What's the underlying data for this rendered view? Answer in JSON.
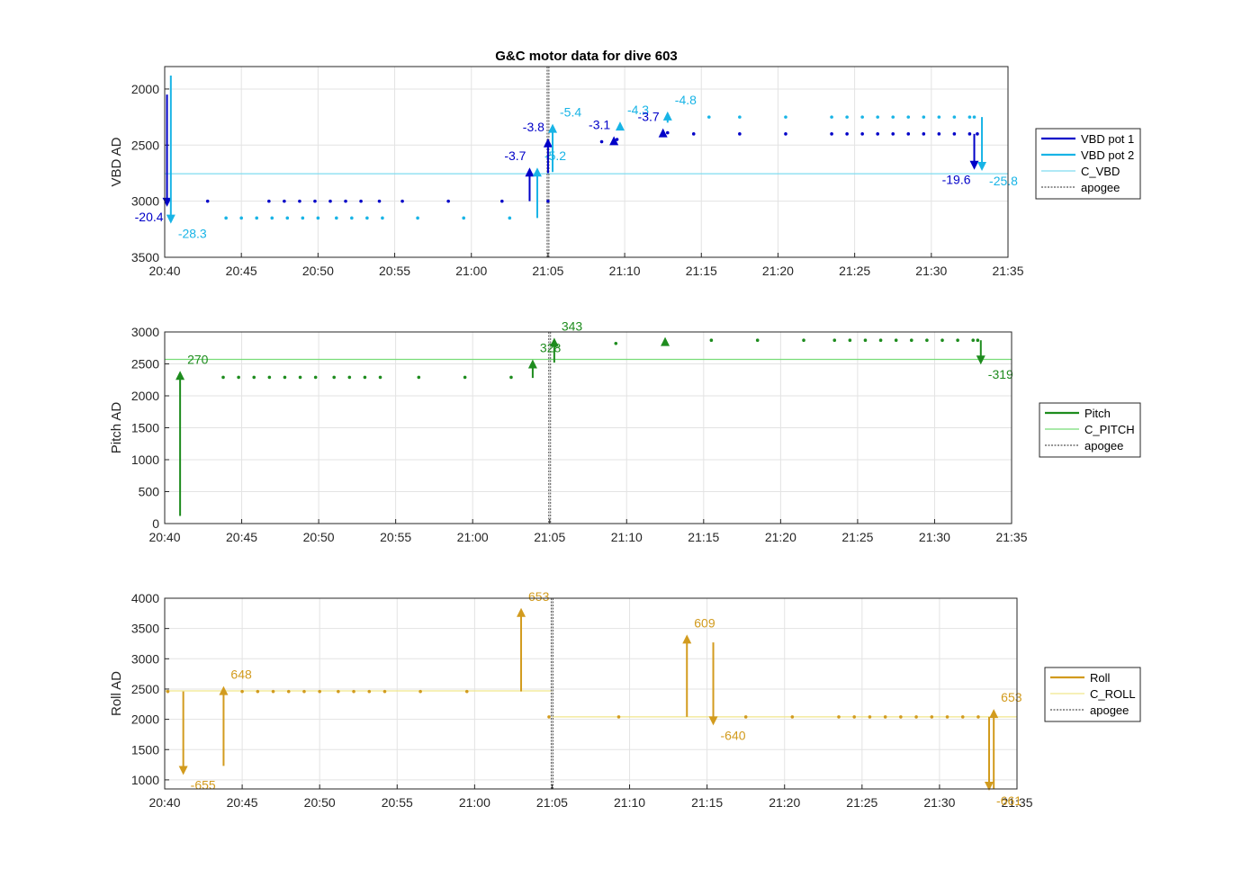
{
  "chart_data": [
    {
      "type": "line",
      "title": "G&C motor data for dive 603",
      "ylabel": "VBD AD",
      "ylim": [
        1800,
        3500
      ],
      "y_reversed": true,
      "yticks": [
        2000,
        2500,
        3000,
        3500
      ],
      "xlim": [
        "20:40",
        "21:35"
      ],
      "xticks": [
        "20:40",
        "20:45",
        "20:50",
        "20:55",
        "21:00",
        "21:05",
        "21:10",
        "21:15",
        "21:20",
        "21:25",
        "21:30",
        "21:35"
      ],
      "grid": true,
      "legend_position": "outside-right",
      "apogee_x": "21:05",
      "legend": [
        "VBD pot 1",
        "VBD pot 2",
        "C_VBD",
        "apogee"
      ],
      "colors": {
        "pot1": "#0000c8",
        "pot2": "#18b4e6",
        "ref": "#7fdcf0",
        "apogee": "#555555"
      },
      "reference": {
        "name": "C_VBD",
        "y": 2755
      },
      "series": [
        {
          "name": "VBD pot 1",
          "color": "#0000c8",
          "points": [
            [
              2.8,
              3000
            ],
            [
              6.8,
              3000
            ],
            [
              7.8,
              3000
            ],
            [
              8.8,
              3000
            ],
            [
              9.8,
              3000
            ],
            [
              10.8,
              3000
            ],
            [
              11.8,
              3000
            ],
            [
              12.8,
              3000
            ],
            [
              14,
              3000
            ],
            [
              15.5,
              3000
            ],
            [
              18.5,
              3000
            ],
            [
              22,
              3000
            ],
            [
              25,
              3000
            ],
            [
              28.5,
              2470
            ],
            [
              29.5,
              2450
            ],
            [
              32.8,
              2390
            ],
            [
              34.5,
              2400
            ],
            [
              37.5,
              2400
            ],
            [
              40.5,
              2400
            ],
            [
              43.5,
              2400
            ],
            [
              44.5,
              2400
            ],
            [
              45.5,
              2400
            ],
            [
              46.5,
              2400
            ],
            [
              47.5,
              2400
            ],
            [
              48.5,
              2400
            ],
            [
              49.5,
              2400
            ],
            [
              50.5,
              2400
            ],
            [
              51.5,
              2400
            ],
            [
              52.5,
              2400
            ],
            [
              53,
              2400
            ]
          ]
        },
        {
          "name": "VBD pot 2",
          "color": "#18b4e6",
          "points": [
            [
              4,
              3150
            ],
            [
              5,
              3150
            ],
            [
              6,
              3150
            ],
            [
              7,
              3150
            ],
            [
              8,
              3150
            ],
            [
              9,
              3150
            ],
            [
              10,
              3150
            ],
            [
              11.2,
              3150
            ],
            [
              12.2,
              3150
            ],
            [
              13.2,
              3150
            ],
            [
              14.2,
              3150
            ],
            [
              16.5,
              3150
            ],
            [
              19.5,
              3150
            ],
            [
              22.5,
              3150
            ],
            [
              35.5,
              2250
            ],
            [
              37.5,
              2250
            ],
            [
              40.5,
              2250
            ],
            [
              43.5,
              2250
            ],
            [
              44.5,
              2250
            ],
            [
              45.5,
              2250
            ],
            [
              46.5,
              2250
            ],
            [
              47.5,
              2250
            ],
            [
              48.5,
              2250
            ],
            [
              49.5,
              2250
            ],
            [
              50.5,
              2250
            ],
            [
              51.5,
              2250
            ],
            [
              52.5,
              2250
            ],
            [
              52.8,
              2250
            ]
          ]
        }
      ],
      "moves": [
        {
          "series": "VBD pot 1",
          "x": 0.15,
          "y0": 2050,
          "y1": 3050,
          "label": "-20.4"
        },
        {
          "series": "VBD pot 2",
          "x": 0.4,
          "y0": 1880,
          "y1": 3200,
          "label": "-28.3"
        },
        {
          "series": "VBD pot 1",
          "x": 23.8,
          "y0": 3000,
          "y1": 2700,
          "label": "-3.7"
        },
        {
          "series": "VBD pot 2",
          "x": 24.3,
          "y0": 3150,
          "y1": 2700,
          "label": "-5.2"
        },
        {
          "series": "VBD pot 1",
          "x": 25,
          "y0": 2750,
          "y1": 2440,
          "label": "-3.8"
        },
        {
          "series": "VBD pot 2",
          "x": 25.3,
          "y0": 2740,
          "y1": 2310,
          "label": "-5.4"
        },
        {
          "series": "VBD pot 1",
          "x": 29.3,
          "y0": 2450,
          "y1": 2420,
          "label": "-3.1"
        },
        {
          "series": "VBD pot 2",
          "x": 29.7,
          "y0": 2350,
          "y1": 2290,
          "label": "-4.3"
        },
        {
          "series": "VBD pot 1",
          "x": 32.5,
          "y0": 2420,
          "y1": 2350,
          "label": "-3.7"
        },
        {
          "series": "VBD pot 2",
          "x": 32.8,
          "y0": 2300,
          "y1": 2200,
          "label": "-4.8"
        },
        {
          "series": "VBD pot 1",
          "x": 52.8,
          "y0": 2400,
          "y1": 2720,
          "label": "-19.6"
        },
        {
          "series": "VBD pot 2",
          "x": 53.3,
          "y0": 2250,
          "y1": 2730,
          "label": "-25.8"
        }
      ]
    },
    {
      "type": "line",
      "ylabel": "Pitch AD",
      "ylim": [
        0,
        3000
      ],
      "yticks": [
        0,
        500,
        1000,
        1500,
        2000,
        2500,
        3000
      ],
      "xlim": [
        "20:40",
        "21:35"
      ],
      "xticks": [
        "20:40",
        "20:45",
        "20:50",
        "20:55",
        "21:00",
        "21:05",
        "21:10",
        "21:15",
        "21:20",
        "21:25",
        "21:30",
        "21:35"
      ],
      "grid": true,
      "legend_position": "outside-right",
      "apogee_x": "21:05",
      "legend": [
        "Pitch",
        "C_PITCH",
        "apogee"
      ],
      "colors": {
        "main": "#1e8c1e",
        "ref": "#78dc78",
        "apogee": "#555555"
      },
      "reference": {
        "name": "C_PITCH",
        "y": 2570
      },
      "series": [
        {
          "name": "Pitch",
          "color": "#1e8c1e",
          "points": [
            [
              3.8,
              2290
            ],
            [
              4.8,
              2290
            ],
            [
              5.8,
              2290
            ],
            [
              6.8,
              2290
            ],
            [
              7.8,
              2290
            ],
            [
              8.8,
              2290
            ],
            [
              9.8,
              2290
            ],
            [
              11,
              2290
            ],
            [
              12,
              2290
            ],
            [
              13,
              2290
            ],
            [
              14,
              2290
            ],
            [
              16.5,
              2290
            ],
            [
              19.5,
              2290
            ],
            [
              22.5,
              2290
            ],
            [
              29.3,
              2820
            ],
            [
              35.5,
              2870
            ],
            [
              38.5,
              2870
            ],
            [
              41.5,
              2870
            ],
            [
              43.5,
              2870
            ],
            [
              44.5,
              2870
            ],
            [
              45.5,
              2870
            ],
            [
              46.5,
              2870
            ],
            [
              47.5,
              2870
            ],
            [
              48.5,
              2870
            ],
            [
              49.5,
              2870
            ],
            [
              50.5,
              2870
            ],
            [
              51.5,
              2870
            ],
            [
              52.5,
              2870
            ],
            [
              52.8,
              2870
            ]
          ]
        }
      ],
      "moves": [
        {
          "series": "Pitch",
          "x": 1,
          "y0": 120,
          "y1": 2390,
          "label": "270"
        },
        {
          "series": "Pitch",
          "x": 23.9,
          "y0": 2280,
          "y1": 2570,
          "label": "328"
        },
        {
          "series": "Pitch",
          "x": 25.3,
          "y0": 2520,
          "y1": 2910,
          "label": "343"
        },
        {
          "series": "Pitch",
          "x": 32.5,
          "y0": 2850,
          "y1": 2920,
          "label": ""
        },
        {
          "series": "Pitch",
          "x": 53,
          "y0": 2870,
          "y1": 2490,
          "label": "-319"
        }
      ]
    },
    {
      "type": "line",
      "ylabel": "Roll AD",
      "ylim": [
        850,
        4000
      ],
      "yticks": [
        1000,
        1500,
        2000,
        2500,
        3000,
        3500,
        4000
      ],
      "xlim": [
        "20:40",
        "21:35"
      ],
      "xticks": [
        "20:40",
        "20:45",
        "20:50",
        "20:55",
        "21:00",
        "21:05",
        "21:10",
        "21:15",
        "21:20",
        "21:25",
        "21:30",
        "21:35"
      ],
      "grid": true,
      "legend_position": "outside-right",
      "apogee_x": "21:05",
      "legend": [
        "Roll",
        "C_ROLL",
        "apogee"
      ],
      "colors": {
        "main": "#d29b1e",
        "ref": "#f0e68c",
        "apogee": "#555555"
      },
      "references": [
        {
          "name": "C_ROLL",
          "x0": 0,
          "x1": 25,
          "y": 2470
        },
        {
          "name": "C_ROLL",
          "x0": 25,
          "x1": 55,
          "y": 2040
        }
      ],
      "series": [
        {
          "name": "Roll",
          "color": "#d29b1e",
          "points": [
            [
              0.2,
              2460
            ],
            [
              5,
              2460
            ],
            [
              6,
              2460
            ],
            [
              7,
              2460
            ],
            [
              8,
              2460
            ],
            [
              9,
              2460
            ],
            [
              10,
              2460
            ],
            [
              11.2,
              2460
            ],
            [
              12.2,
              2460
            ],
            [
              13.2,
              2460
            ],
            [
              14.2,
              2460
            ],
            [
              16.5,
              2460
            ],
            [
              19.5,
              2460
            ],
            [
              24.8,
              2040
            ],
            [
              29.3,
              2040
            ],
            [
              37.5,
              2040
            ],
            [
              40.5,
              2040
            ],
            [
              43.5,
              2040
            ],
            [
              44.5,
              2040
            ],
            [
              45.5,
              2040
            ],
            [
              46.5,
              2040
            ],
            [
              47.5,
              2040
            ],
            [
              48.5,
              2040
            ],
            [
              49.5,
              2040
            ],
            [
              50.5,
              2040
            ],
            [
              51.5,
              2040
            ],
            [
              52.5,
              2040
            ]
          ]
        }
      ],
      "moves": [
        {
          "series": "Roll",
          "x": 1.2,
          "y0": 2460,
          "y1": 1080,
          "label": "-655"
        },
        {
          "series": "Roll",
          "x": 3.8,
          "y0": 1230,
          "y1": 2550,
          "label": "648"
        },
        {
          "series": "Roll",
          "x": 23,
          "y0": 2460,
          "y1": 3840,
          "label": "653"
        },
        {
          "series": "Roll",
          "x": 33.7,
          "y0": 2040,
          "y1": 3400,
          "label": "609"
        },
        {
          "series": "Roll",
          "x": 35.4,
          "y0": 3270,
          "y1": 1900,
          "label": "-640"
        },
        {
          "series": "Roll",
          "x": 53.2,
          "y0": 2040,
          "y1": 820,
          "label": "-661"
        },
        {
          "series": "Roll",
          "x": 53.5,
          "y0": 850,
          "y1": 2170,
          "label": "653"
        }
      ]
    }
  ]
}
